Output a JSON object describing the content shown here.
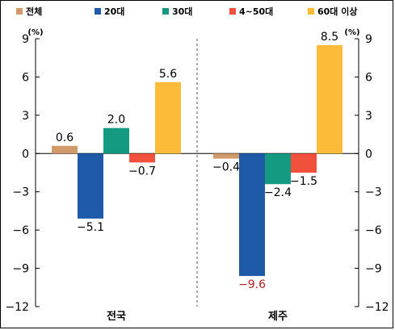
{
  "chart_data": {
    "type": "bar",
    "categories": [
      "전국",
      "제주"
    ],
    "series": [
      {
        "name": "전체",
        "color": "#D09A6A",
        "values": [
          0.6,
          -0.4
        ],
        "labels": [
          "0.6",
          "−0.4"
        ]
      },
      {
        "name": "20대",
        "color": "#1F5AA8",
        "values": [
          -5.1,
          -9.6
        ],
        "labels": [
          "−5.1",
          "−9.6"
        ]
      },
      {
        "name": "30대",
        "color": "#149A80",
        "values": [
          2.0,
          -2.4
        ],
        "labels": [
          "2.0",
          "−2.4"
        ]
      },
      {
        "name": "4~50대",
        "color": "#F0503C",
        "values": [
          -0.7,
          -1.5
        ],
        "labels": [
          "−0.7",
          "−1.5"
        ]
      },
      {
        "name": "60대 이상",
        "color": "#FDBB3A",
        "values": [
          5.6,
          8.5
        ],
        "labels": [
          "5.6",
          "8.5"
        ]
      }
    ],
    "ylim": [
      -12,
      9
    ],
    "yticks": [
      9,
      6,
      3,
      0,
      -3,
      -6,
      -9,
      -12
    ],
    "ytick_labels": [
      "9",
      "6",
      "3",
      "0",
      "−3",
      "−6",
      "−9",
      "−12"
    ],
    "unit_left": "(%)",
    "unit_right": "(%)",
    "legend_position": "top",
    "grid": false,
    "highlight_label_color": "#B02020"
  }
}
